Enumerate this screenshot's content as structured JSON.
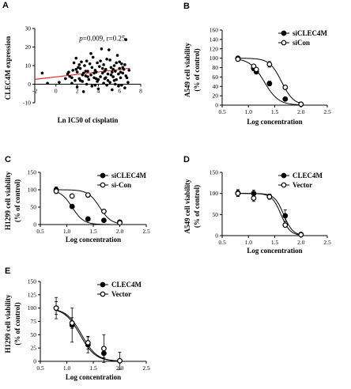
{
  "chart_data": [
    {
      "panel": "A",
      "type": "scatter",
      "title": "",
      "xlabel": "Ln IC50 of cisplatin",
      "ylabel": "CLEC4M expression",
      "xlim": [
        -2,
        8
      ],
      "ylim": [
        -10,
        30
      ],
      "x_ticks": [
        -2,
        0,
        2,
        4,
        6,
        8
      ],
      "y_ticks": [
        -10,
        0,
        10,
        20,
        30
      ],
      "annotation": {
        "p_symbol": "p",
        "p_rest": "=0.009, r=0.25"
      },
      "trend_line": {
        "x": [
          -2,
          7
        ],
        "y": [
          2.6,
          8.6
        ]
      },
      "points": [
        [
          1.1,
          5.5
        ],
        [
          1.3,
          4.2
        ],
        [
          1.5,
          3.5
        ],
        [
          1.6,
          7.5
        ],
        [
          1.7,
          11.5
        ],
        [
          1.9,
          14.0
        ],
        [
          2.0,
          6.5
        ],
        [
          2.1,
          9.0
        ],
        [
          2.2,
          3.0
        ],
        [
          2.3,
          8.5
        ],
        [
          2.4,
          12.0
        ],
        [
          2.5,
          1.5
        ],
        [
          2.6,
          6.0
        ],
        [
          2.7,
          10.0
        ],
        [
          2.8,
          4.5
        ],
        [
          2.9,
          12.5
        ],
        [
          3.0,
          7.0
        ],
        [
          3.1,
          2.5
        ],
        [
          3.2,
          11.0
        ],
        [
          3.3,
          5.0
        ],
        [
          3.4,
          9.0
        ],
        [
          3.5,
          14.5
        ],
        [
          3.6,
          3.5
        ],
        [
          3.7,
          7.5
        ],
        [
          3.8,
          6.5
        ],
        [
          3.9,
          11.5
        ],
        [
          4.0,
          2.5
        ],
        [
          4.1,
          9.5
        ],
        [
          4.2,
          4.0
        ],
        [
          4.3,
          19.0
        ],
        [
          4.4,
          6.0
        ],
        [
          4.5,
          10.5
        ],
        [
          4.6,
          3.0
        ],
        [
          4.7,
          8.0
        ],
        [
          4.8,
          13.5
        ],
        [
          4.9,
          5.5
        ],
        [
          5.0,
          18.5
        ],
        [
          5.1,
          1.0
        ],
        [
          5.2,
          9.0
        ],
        [
          5.3,
          6.5
        ],
        [
          5.4,
          4.0
        ],
        [
          5.5,
          10.0
        ],
        [
          5.6,
          7.0
        ],
        [
          5.7,
          2.5
        ],
        [
          5.8,
          15.5
        ],
        [
          5.9,
          5.5
        ],
        [
          6.0,
          8.5
        ],
        [
          6.1,
          3.5
        ],
        [
          6.2,
          11.0
        ],
        [
          6.3,
          6.0
        ],
        [
          6.4,
          8.0
        ],
        [
          6.6,
          24.0
        ],
        [
          6.7,
          3.5
        ],
        [
          6.9,
          7.5
        ],
        [
          2.0,
          -1.5
        ],
        [
          2.6,
          -4.0
        ],
        [
          3.4,
          -1.0
        ],
        [
          4.0,
          -2.5
        ],
        [
          4.8,
          -0.5
        ],
        [
          5.3,
          -3.0
        ],
        [
          5.9,
          -1.0
        ],
        [
          6.5,
          -2.0
        ],
        [
          1.5,
          0.5
        ],
        [
          2.9,
          0.0
        ],
        [
          3.7,
          -0.5
        ],
        [
          4.5,
          0.5
        ],
        [
          5.6,
          0.0
        ],
        [
          6.2,
          -0.5
        ],
        [
          1.8,
          2.0
        ],
        [
          3.9,
          1.5
        ],
        [
          4.9,
          2.0
        ],
        [
          6.8,
          1.0
        ],
        [
          0.9,
          3.0
        ],
        [
          0.3,
          1.0
        ],
        [
          -0.8,
          0.5
        ],
        [
          -1.3,
          6.0
        ],
        [
          2.2,
          10.5
        ],
        [
          3.3,
          16.5
        ],
        [
          4.2,
          12.5
        ],
        [
          5.1,
          13.0
        ],
        [
          6.0,
          12.0
        ],
        [
          6.5,
          10.5
        ],
        [
          1.9,
          8.0
        ],
        [
          2.8,
          7.0
        ],
        [
          3.6,
          6.0
        ],
        [
          4.4,
          8.5
        ],
        [
          5.2,
          5.0
        ],
        [
          6.1,
          6.5
        ],
        [
          2.5,
          5.0
        ],
        [
          3.0,
          4.0
        ],
        [
          4.7,
          3.5
        ],
        [
          5.5,
          2.0
        ],
        [
          6.6,
          4.5
        ],
        [
          1.2,
          6.5
        ],
        [
          2.3,
          2.0
        ],
        [
          3.8,
          3.0
        ],
        [
          4.6,
          7.0
        ],
        [
          5.4,
          8.0
        ],
        [
          6.3,
          9.0
        ],
        [
          5.7,
          11.5
        ]
      ]
    },
    {
      "panel": "B",
      "type": "line",
      "title": "",
      "xlabel": "Log concentration",
      "ylabel": "A549 cell viability",
      "ylabel2": "(% of control)",
      "xlim": [
        0.5,
        2.5
      ],
      "ylim": [
        0,
        160
      ],
      "x_ticks": [
        0.5,
        1.0,
        1.5,
        2.0,
        2.5
      ],
      "x_tick_labels": [
        "0.5",
        "1.0",
        "1.5",
        "2.0",
        "2.5"
      ],
      "y_ticks": [
        0,
        20,
        40,
        60,
        80,
        100,
        120,
        140,
        160
      ],
      "legend_position": "top-right",
      "series": [
        {
          "name": "siCLEC4M",
          "marker": "filled",
          "x": [
            0.8,
            1.1,
            1.15,
            1.4,
            1.7,
            2.0
          ],
          "y": [
            100,
            78,
            71,
            46,
            13,
            2
          ],
          "err": [
            4,
            3,
            4,
            5,
            3,
            2
          ],
          "ic50": 1.3,
          "hill": 3.2
        },
        {
          "name": "siCon",
          "marker": "open",
          "x": [
            0.8,
            1.1,
            1.15,
            1.4,
            1.7,
            2.0
          ],
          "y": [
            98,
            83,
            76,
            87,
            38,
            2
          ],
          "err": [
            4,
            3,
            4,
            6,
            4,
            2
          ],
          "ic50": 1.63,
          "hill": 3.8
        }
      ]
    },
    {
      "panel": "C",
      "type": "line",
      "title": "",
      "xlabel": "Log concentration",
      "ylabel": "H1299 cell viability",
      "ylabel2": "(% of control)",
      "xlim": [
        0.5,
        2.5
      ],
      "ylim": [
        0,
        150
      ],
      "x_ticks": [
        0.5,
        1.0,
        1.5,
        2.0,
        2.5
      ],
      "x_tick_labels": [
        "0.5",
        "1.0",
        "1.5",
        "2.0",
        "2.5"
      ],
      "y_ticks": [
        0,
        50,
        100,
        150
      ],
      "legend_position": "top-right",
      "series": [
        {
          "name": "siCLEC4M",
          "marker": "filled",
          "x": [
            0.8,
            1.1,
            1.4,
            1.7,
            2.0
          ],
          "y": [
            100,
            52,
            16,
            12,
            7
          ],
          "err": [
            8,
            6,
            4,
            3,
            2
          ],
          "ic50": 1.1,
          "hill": 4.0
        },
        {
          "name": "si-Con",
          "marker": "open",
          "x": [
            0.8,
            1.1,
            1.4,
            1.7,
            2.0
          ],
          "y": [
            96,
            82,
            85,
            38,
            5
          ],
          "err": [
            7,
            5,
            6,
            4,
            2
          ],
          "ic50": 1.62,
          "hill": 4.0
        }
      ]
    },
    {
      "panel": "D",
      "type": "line",
      "title": "",
      "xlabel": "Log concentration",
      "ylabel": "A549 cell viability",
      "ylabel2": "(% of control)",
      "xlim": [
        0.5,
        2.5
      ],
      "ylim": [
        0,
        150
      ],
      "x_ticks": [
        0.5,
        1.0,
        1.5,
        2.0,
        2.5
      ],
      "x_tick_labels": [
        "0.5",
        "1.0",
        "1.5",
        "2.0",
        "2.5"
      ],
      "y_ticks": [
        0,
        50,
        100,
        150
      ],
      "legend_position": "top-right",
      "series": [
        {
          "name": "CLEC4M",
          "marker": "filled",
          "x": [
            0.8,
            1.1,
            1.4,
            1.7,
            2.0
          ],
          "y": [
            101,
            100,
            93,
            47,
            3
          ],
          "err": [
            8,
            8,
            5,
            14,
            2
          ],
          "ic50": 1.67,
          "hill": 5.0
        },
        {
          "name": "Vector",
          "marker": "open",
          "x": [
            0.8,
            1.1,
            1.4,
            1.7,
            2.0
          ],
          "y": [
            100,
            89,
            92,
            25,
            2
          ],
          "err": [
            7,
            8,
            6,
            5,
            2
          ],
          "ic50": 1.62,
          "hill": 5.0
        }
      ]
    },
    {
      "panel": "E",
      "type": "line",
      "title": "",
      "xlabel": "Log concentration",
      "ylabel": "H1299 cell viability",
      "ylabel2": "(% of control)",
      "xlim": [
        0.5,
        2.5
      ],
      "ylim": [
        0,
        150
      ],
      "x_ticks": [
        0.5,
        1.0,
        1.5,
        2.0,
        2.5
      ],
      "x_tick_labels": [
        "0.5",
        "1.0",
        "1.5",
        "2.0",
        "2.5"
      ],
      "y_ticks": [
        0,
        25,
        50,
        75,
        100,
        125,
        150
      ],
      "legend_position": "top-right",
      "series": [
        {
          "name": "CLEC4M",
          "marker": "filled",
          "x": [
            0.8,
            1.1,
            1.4,
            1.7,
            2.0
          ],
          "y": [
            100,
            68,
            31,
            15,
            1
          ],
          "err": [
            20,
            32,
            15,
            8,
            1
          ],
          "ic50": 1.25,
          "hill": 3.0
        },
        {
          "name": "Vector",
          "marker": "open",
          "x": [
            0.8,
            1.1,
            1.4,
            1.7,
            2.0
          ],
          "y": [
            100,
            72,
            35,
            24,
            1
          ],
          "err": [
            12,
            10,
            12,
            26,
            16
          ],
          "ic50": 1.28,
          "hill": 3.0
        }
      ]
    }
  ]
}
